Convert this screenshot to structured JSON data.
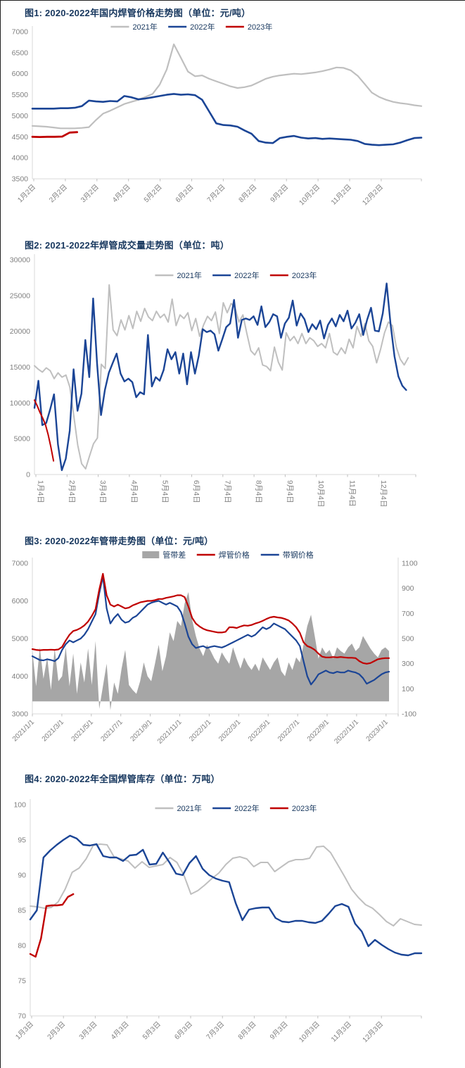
{
  "colors": {
    "title": "#17375E",
    "legend_text": "#17375E",
    "axis_label": "#7F7F7F",
    "axis_line": "#D9D9D9",
    "tick": "#BFBFBF",
    "gray_series": "#BFBFBF",
    "blue_series": "#1B4596",
    "red_series": "#C00000",
    "area_series": "#A6A6A6"
  },
  "chart_data": [
    {
      "type": "line",
      "title": "图1: 2020-2022年国内焊管价格走势图（单位：元/吨）",
      "ylabel": "",
      "xlabel": "",
      "y_axis": {
        "min": 3500,
        "max": 7000,
        "step": 500
      },
      "x_tick_labels": [
        "1月2日",
        "2月2日",
        "3月2日",
        "4月2日",
        "5月2日",
        "6月2日",
        "7月2日",
        "8月2日",
        "9月2日",
        "10月2日",
        "11月2日",
        "12月2日"
      ],
      "legend_position": "top-center",
      "series": [
        {
          "name": "2021年",
          "color": "#BFBFBF",
          "frac": 1,
          "values": [
            4760,
            4750,
            4740,
            4720,
            4700,
            4700,
            4700,
            4710,
            4730,
            4900,
            5050,
            5120,
            5200,
            5280,
            5330,
            5380,
            5450,
            5520,
            5740,
            6100,
            6700,
            6380,
            6050,
            5940,
            5960,
            5880,
            5820,
            5760,
            5700,
            5660,
            5680,
            5720,
            5800,
            5880,
            5930,
            5960,
            5980,
            6000,
            5990,
            6010,
            6030,
            6060,
            6100,
            6150,
            6140,
            6080,
            5950,
            5750,
            5550,
            5450,
            5380,
            5330,
            5300,
            5280,
            5250,
            5230
          ]
        },
        {
          "name": "2022年",
          "color": "#1B4596",
          "frac": 1,
          "values": [
            5170,
            5170,
            5170,
            5170,
            5180,
            5180,
            5190,
            5230,
            5360,
            5340,
            5330,
            5350,
            5340,
            5470,
            5440,
            5390,
            5410,
            5440,
            5470,
            5500,
            5520,
            5500,
            5510,
            5490,
            5380,
            5100,
            4820,
            4780,
            4770,
            4740,
            4650,
            4570,
            4400,
            4360,
            4350,
            4470,
            4500,
            4520,
            4480,
            4460,
            4470,
            4450,
            4460,
            4450,
            4440,
            4430,
            4400,
            4330,
            4310,
            4300,
            4310,
            4320,
            4360,
            4420,
            4470,
            4480
          ]
        },
        {
          "name": "2023年",
          "color": "#C00000",
          "frac": 0.115,
          "values": [
            4500,
            4495,
            4500,
            4500,
            4505,
            4600,
            4610
          ]
        }
      ]
    },
    {
      "type": "line",
      "title": "图2: 2021-2022年焊管成交量走势图（单位：吨）",
      "ylabel": "",
      "xlabel": "",
      "y_axis": {
        "min": 0,
        "max": 30000,
        "step": 5000
      },
      "x_tick_labels": [
        "1月4日",
        "2月4日",
        "3月4日",
        "4月4日",
        "5月4日",
        "6月4日",
        "7月4日",
        "8月4日",
        "9月4日",
        "10月4日",
        "11月4日",
        "12月4日"
      ],
      "legend_position": "top-center",
      "series": [
        {
          "name": "2021年",
          "color": "#BFBFBF",
          "frac": 0.98,
          "values": [
            15200,
            14700,
            14300,
            14900,
            14500,
            13400,
            14200,
            13600,
            13900,
            12200,
            8200,
            4100,
            1500,
            800,
            2600,
            4300,
            5100,
            15400,
            14800,
            26500,
            20200,
            19400,
            21600,
            20200,
            22200,
            20400,
            22800,
            21400,
            23200,
            22000,
            21500,
            22800,
            21900,
            22400,
            21300,
            24500,
            20800,
            22300,
            21800,
            22600,
            20100,
            21800,
            19300,
            20900,
            22100,
            21500,
            22700,
            19700,
            24000,
            22600,
            23900,
            23300,
            21300,
            22300,
            19700,
            17300,
            16700,
            17700,
            15300,
            15100,
            14500,
            17800,
            15700,
            14600,
            19800,
            18700,
            19300,
            18300,
            19700,
            18300,
            19100,
            18700,
            17900,
            18300,
            17700,
            19700,
            17100,
            16700,
            17700,
            16900,
            18900,
            17700,
            20700,
            19300,
            21100,
            18700,
            17900,
            15600,
            17500,
            19800,
            21300,
            20800,
            17800,
            16100,
            15300,
            16300
          ]
        },
        {
          "name": "2022年",
          "color": "#1B4596",
          "frac": 0.975,
          "values": [
            9300,
            13100,
            6900,
            7200,
            9100,
            11200,
            4200,
            600,
            2200,
            6100,
            14700,
            8900,
            11300,
            18800,
            13600,
            24600,
            15500,
            8300,
            11800,
            14200,
            15600,
            16900,
            14100,
            13000,
            13400,
            12900,
            10800,
            11500,
            11200,
            19500,
            12300,
            13600,
            13100,
            14600,
            17500,
            16100,
            17100,
            14100,
            16900,
            12600,
            17100,
            14100,
            16600,
            20300,
            19900,
            20100,
            19600,
            17300,
            18900,
            20600,
            21100,
            24400,
            19100,
            21600,
            21800,
            21600,
            22100,
            20900,
            23500,
            20600,
            21300,
            22400,
            22100,
            19100,
            21100,
            21900,
            24300,
            20800,
            22500,
            21700,
            19900,
            21000,
            20300,
            21500,
            19000,
            20900,
            21800,
            20700,
            22300,
            21400,
            22900,
            20400,
            21200,
            22400,
            19500,
            21600,
            23300,
            20100,
            20000,
            22500,
            26700,
            21000,
            16500,
            13700,
            12400,
            11800
          ]
        },
        {
          "name": "2023年",
          "color": "#C00000",
          "frac": 0.05,
          "values": [
            10400,
            9600,
            8700,
            7900,
            7000,
            5600,
            3900,
            1900
          ]
        }
      ]
    },
    {
      "type": "combo",
      "title": "图3: 2020-2022年管带走势图（单位：元/吨）",
      "ylabel": "",
      "xlabel": "",
      "y_axis": {
        "min": 3000,
        "max": 7000,
        "step": 1000
      },
      "y_axis_right": {
        "min": -100,
        "max": 1100,
        "step": 200
      },
      "x_tick_labels": [
        "2021/1/1",
        "2021/3/1",
        "2021/5/1",
        "2021/7/1",
        "2021/9/1",
        "2021/11/1",
        "2022/1/1",
        "2022/3/1",
        "2022/5/1",
        "2022/7/1",
        "2022/9/1",
        "2022/11/1",
        "2023/1/1"
      ],
      "legend_position": "top-center",
      "series": [
        {
          "name": "管带差",
          "kind": "area",
          "axis": "right",
          "color": "#A6A6A6",
          "frac": 0.975,
          "values": [
            400,
            120,
            430,
            180,
            350,
            90,
            420,
            160,
            200,
            430,
            120,
            380,
            60,
            310,
            150,
            420,
            130,
            480,
            -60,
            120,
            300,
            -70,
            150,
            60,
            260,
            410,
            130,
            90,
            60,
            160,
            310,
            200,
            160,
            300,
            450,
            240,
            360,
            550,
            480,
            640,
            600,
            780,
            870,
            650,
            520,
            420,
            360,
            450,
            400,
            340,
            300,
            390,
            340,
            300,
            430,
            340,
            260,
            350,
            290,
            250,
            300,
            240,
            350,
            300,
            250,
            310,
            350,
            240,
            200,
            310,
            250,
            350,
            310,
            450,
            600,
            690,
            520,
            340,
            430,
            380,
            410,
            340,
            430,
            400,
            380,
            430,
            460,
            400,
            430,
            520,
            470,
            420,
            380,
            350,
            410,
            430,
            400
          ]
        },
        {
          "name": "焊管价格",
          "kind": "line",
          "axis": "left",
          "color": "#C00000",
          "frac": 0.975,
          "values": [
            4720,
            4700,
            4690,
            4700,
            4700,
            4705,
            4700,
            4710,
            4780,
            4950,
            5100,
            5200,
            5230,
            5280,
            5350,
            5450,
            5600,
            5780,
            6300,
            6720,
            6150,
            5900,
            5850,
            5900,
            5850,
            5800,
            5820,
            5880,
            5920,
            5960,
            5980,
            6000,
            6000,
            6020,
            6050,
            6050,
            6080,
            6100,
            6120,
            6150,
            6150,
            6100,
            5850,
            5550,
            5400,
            5320,
            5260,
            5220,
            5200,
            5180,
            5160,
            5160,
            5180,
            5300,
            5300,
            5280,
            5320,
            5350,
            5340,
            5360,
            5400,
            5430,
            5470,
            5520,
            5560,
            5580,
            5560,
            5550,
            5520,
            5480,
            5400,
            5300,
            5150,
            4900,
            4800,
            4760,
            4700,
            4600,
            4520,
            4500,
            4500,
            4510,
            4500,
            4510,
            4500,
            4490,
            4490,
            4480,
            4400,
            4350,
            4330,
            4350,
            4400,
            4450,
            4470,
            4480,
            4480
          ]
        },
        {
          "name": "带钢价格",
          "kind": "line",
          "axis": "left",
          "color": "#1B4596",
          "frac": 0.975,
          "values": [
            4530,
            4480,
            4430,
            4420,
            4450,
            4430,
            4400,
            4480,
            4700,
            4850,
            4950,
            4900,
            4950,
            5000,
            5100,
            5250,
            5450,
            5650,
            6200,
            6650,
            5800,
            5400,
            5550,
            5650,
            5500,
            5420,
            5450,
            5550,
            5600,
            5700,
            5800,
            5900,
            5950,
            5980,
            6000,
            5950,
            5900,
            5950,
            5900,
            5850,
            5700,
            5400,
            5050,
            4850,
            4750,
            4780,
            4800,
            4750,
            4780,
            4800,
            4780,
            4760,
            4800,
            4850,
            4900,
            4950,
            5000,
            5050,
            5100,
            5050,
            5100,
            5200,
            5300,
            5250,
            5300,
            5400,
            5350,
            5300,
            5250,
            5150,
            5050,
            4950,
            4800,
            4400,
            4000,
            3780,
            3900,
            4050,
            4100,
            4150,
            4100,
            4080,
            4120,
            4100,
            4100,
            4150,
            4120,
            4100,
            4050,
            3950,
            3800,
            3850,
            3900,
            3980,
            4050,
            4100,
            4120
          ]
        }
      ]
    },
    {
      "type": "line",
      "title": "图4: 2020-2022年全国焊管库存（单位：万吨）",
      "ylabel": "",
      "xlabel": "",
      "y_axis": {
        "min": 70,
        "max": 100,
        "step": 5
      },
      "x_tick_labels": [
        "1月3日",
        "2月3日",
        "3月3日",
        "4月3日",
        "5月3日",
        "6月3日",
        "7月3日",
        "8月3日",
        "9月3日",
        "10月3日",
        "11月3日",
        "12月3日"
      ],
      "legend_position": "top-center",
      "series": [
        {
          "name": "2021年",
          "color": "#BFBFBF",
          "frac": 1,
          "values": [
            85.6,
            85.5,
            85.3,
            85.4,
            86.2,
            88.0,
            90.4,
            91.0,
            92.3,
            94.2,
            94.4,
            94.3,
            92.6,
            92.3,
            92.0,
            91.0,
            91.9,
            91.1,
            91.3,
            91.5,
            92.5,
            91.8,
            90.0,
            87.3,
            87.8,
            88.6,
            89.5,
            90.3,
            91.5,
            92.4,
            92.6,
            92.3,
            91.2,
            91.8,
            91.8,
            90.5,
            91.2,
            91.9,
            92.2,
            92.2,
            92.4,
            94.0,
            94.1,
            93.2,
            91.5,
            89.8,
            88.0,
            86.8,
            85.8,
            85.3,
            84.4,
            83.4,
            82.8,
            83.8,
            83.4,
            83.0,
            82.9
          ]
        },
        {
          "name": "2022年",
          "color": "#1B4596",
          "frac": 1,
          "values": [
            83.7,
            85.0,
            92.5,
            93.5,
            94.3,
            95.0,
            95.6,
            95.2,
            94.3,
            94.2,
            94.4,
            92.7,
            92.5,
            92.5,
            92.0,
            92.8,
            92.9,
            93.6,
            91.5,
            91.6,
            93.2,
            91.8,
            90.2,
            90.0,
            91.7,
            92.7,
            90.9,
            90.0,
            89.5,
            89.2,
            89.0,
            86.0,
            83.6,
            85.1,
            85.3,
            85.4,
            85.4,
            83.9,
            83.4,
            83.3,
            83.5,
            83.5,
            83.3,
            83.2,
            83.5,
            84.5,
            85.6,
            85.9,
            85.5,
            83.1,
            82.0,
            79.9,
            80.8,
            80.1,
            79.5,
            79.0,
            78.7,
            78.6,
            78.9,
            78.9
          ]
        },
        {
          "name": "2023年",
          "color": "#C00000",
          "frac": 0.11,
          "values": [
            78.8,
            78.4,
            81.0,
            85.6,
            85.7,
            85.7,
            85.8,
            86.9,
            87.3
          ]
        }
      ]
    }
  ]
}
